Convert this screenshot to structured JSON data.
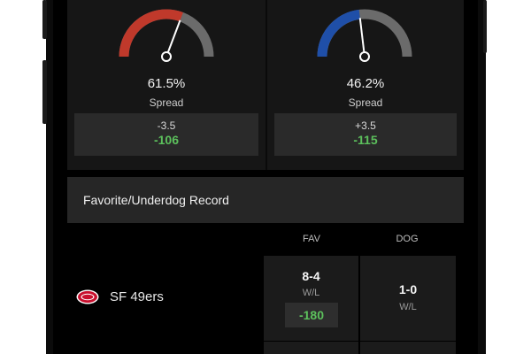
{
  "gauges": [
    {
      "percent_label": "61.5%",
      "percent_value": 61.5,
      "label": "Spread",
      "color": "#c0392b",
      "line": "-3.5",
      "price": "-106"
    },
    {
      "percent_label": "46.2%",
      "percent_value": 46.2,
      "label": "Spread",
      "color": "#1f4fa8",
      "line": "+3.5",
      "price": "-115"
    }
  ],
  "record_section": {
    "title": "Favorite/Underdog Record",
    "columns": {
      "fav": "FAV",
      "dog": "DOG"
    },
    "rows": [
      {
        "team": "SF 49ers",
        "logo_icon": "sf-49ers-logo-icon",
        "fav_record": "8-4",
        "fav_wl": "W/L",
        "fav_odds": "-180",
        "dog_record": "1-0",
        "dog_wl": "W/L"
      }
    ]
  },
  "colors": {
    "positive": "#5cc05c",
    "gauge_track": "#6b6b6b",
    "background": "#000000"
  }
}
